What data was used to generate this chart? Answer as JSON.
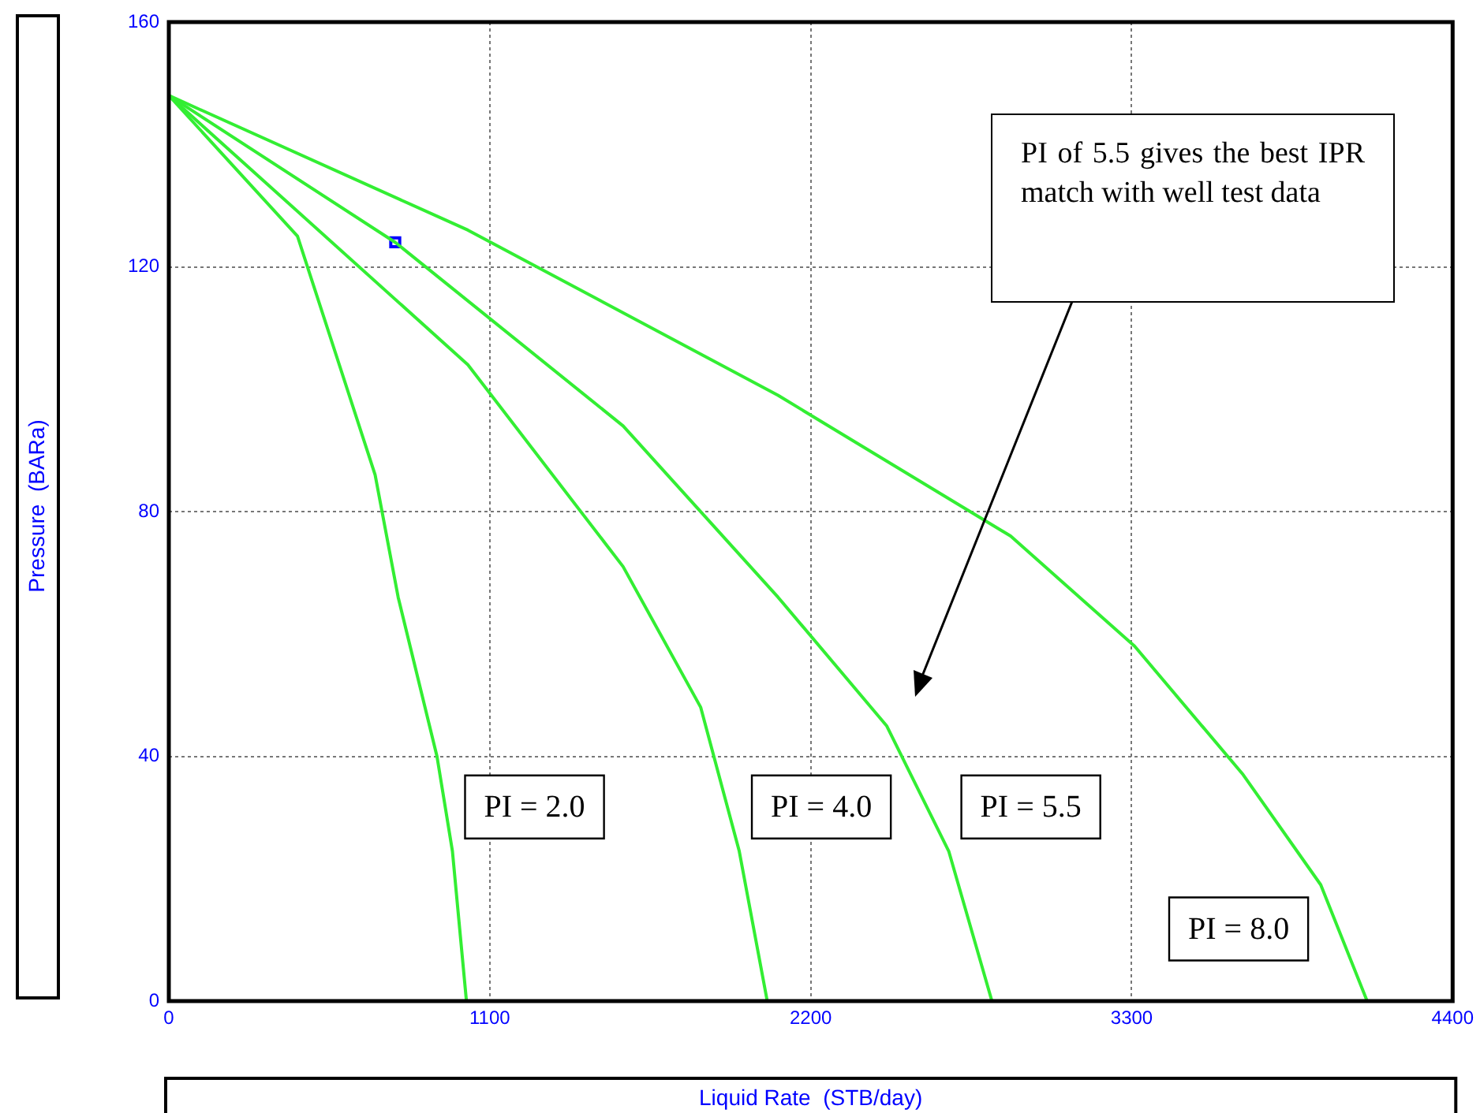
{
  "chart_data": {
    "type": "line",
    "xlabel": "Liquid Rate  (STB/day)",
    "ylabel": "Pressure  (BARa)",
    "xlim": [
      0,
      4400
    ],
    "ylim": [
      0,
      160
    ],
    "xticks": [
      0,
      1100,
      2200,
      3300,
      4400
    ],
    "yticks": [
      0,
      40,
      80,
      120,
      160
    ],
    "grid": true,
    "line_style": "solid",
    "marker": "none",
    "series": [
      {
        "name": "PI = 2.0",
        "color": "#33ee33",
        "x": [
          0,
          441,
          707,
          786,
          919,
          972,
          1020
        ],
        "values": [
          148,
          125,
          86,
          66,
          40,
          24.5,
          0
        ]
      },
      {
        "name": "PI = 4.0",
        "color": "#33ee33",
        "x": [
          0,
          1025,
          1557,
          1823,
          1955,
          2051
        ],
        "values": [
          148,
          104,
          71,
          48,
          24.5,
          0
        ]
      },
      {
        "name": "PI = 5.5",
        "color": "#33ee33",
        "x": [
          0,
          776,
          1557,
          2088,
          2460,
          2673,
          2821
        ],
        "values": [
          148,
          124,
          94,
          66,
          45,
          24.5,
          0
        ]
      },
      {
        "name": "PI = 8.0",
        "color": "#33ee33",
        "x": [
          0,
          1025,
          2088,
          2885,
          3310,
          3682,
          3948,
          4107
        ],
        "values": [
          148,
          126,
          99,
          76,
          58,
          37,
          19,
          0
        ]
      },
      {
        "type": "scatter",
        "marker": "square",
        "color": "#0000ff",
        "x": [
          776
        ],
        "values": [
          124
        ]
      }
    ],
    "annotations": [
      "PI of 5.5 gives the best IPR match with well test data"
    ]
  }
}
